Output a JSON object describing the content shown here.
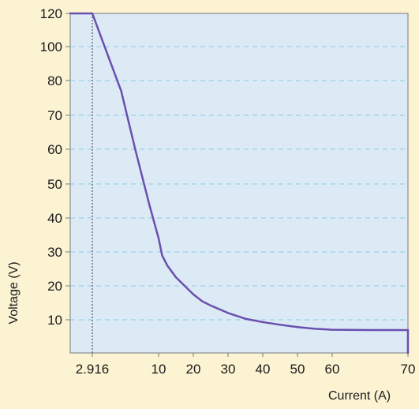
{
  "chart_data": {
    "type": "line",
    "title": "",
    "xlabel": "Current (A)",
    "ylabel": "Voltage (V)",
    "x_tick_labels": [
      "2.916",
      "10",
      "20",
      "30",
      "40",
      "50",
      "60",
      "70"
    ],
    "y_tick_labels": [
      "10",
      "20",
      "30",
      "40",
      "50",
      "60",
      "70",
      "80",
      "100",
      "120"
    ],
    "x_ticks": [
      2.916,
      10,
      20,
      30,
      40,
      50,
      60,
      70
    ],
    "y_ticks": [
      10,
      20,
      30,
      40,
      50,
      60,
      70,
      80,
      100,
      120
    ],
    "x_axis_scale": "piecewise: nonuniform spacing between 2.916 and 10",
    "y_axis_scale": "piecewise: 10-unit steps to 80, then 20-unit steps to 120",
    "grid": "horizontal dashed",
    "marker": {
      "x": 2.916,
      "style": "dotted vertical"
    },
    "series": [
      {
        "name": "",
        "color": "#6a4fb0",
        "points": [
          [
            -2.1,
            120
          ],
          [
            2.916,
            120
          ],
          [
            4.5,
            96
          ],
          [
            6.0,
            77
          ],
          [
            7.5,
            60
          ],
          [
            9.0,
            44
          ],
          [
            10,
            34
          ],
          [
            11,
            29
          ],
          [
            12.5,
            26
          ],
          [
            15,
            22.5
          ],
          [
            17.5,
            20
          ],
          [
            20,
            17.5
          ],
          [
            22.5,
            15.5
          ],
          [
            25,
            14.2
          ],
          [
            30,
            12
          ],
          [
            35,
            10.3
          ],
          [
            40,
            9.3
          ],
          [
            45,
            8.5
          ],
          [
            50,
            7.8
          ],
          [
            55,
            7.3
          ],
          [
            60,
            7.0
          ],
          [
            65,
            6.9
          ],
          [
            70,
            6.9
          ],
          [
            70,
            0
          ]
        ]
      }
    ]
  }
}
